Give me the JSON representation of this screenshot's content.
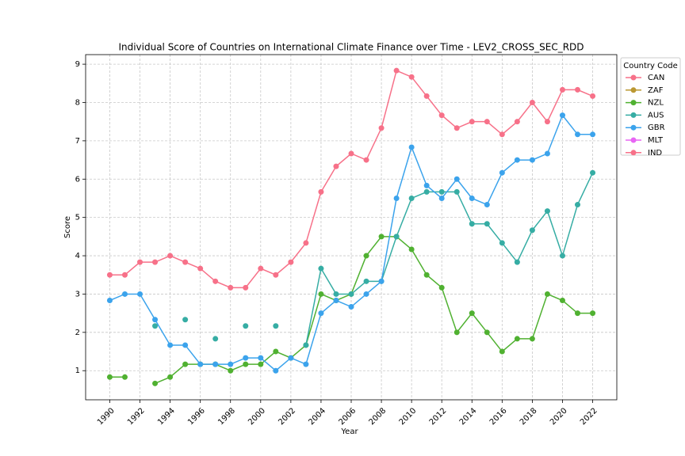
{
  "chart_data": {
    "type": "line",
    "title": "Individual Score of Countries on International Climate Finance over Time - LEV2_CROSS_SEC_RDD",
    "x_label": "Year",
    "y_label": "Score",
    "legend_title": "Country Code",
    "legend": "outside right",
    "grid": true,
    "x": [
      1990,
      1991,
      1992,
      1993,
      1994,
      1995,
      1996,
      1997,
      1998,
      1999,
      2000,
      2001,
      2002,
      2003,
      2004,
      2005,
      2006,
      2007,
      2008,
      2009,
      2010,
      2011,
      2012,
      2013,
      2014,
      2015,
      2016,
      2017,
      2018,
      2019,
      2020,
      2021,
      2022
    ],
    "xlim": [
      1988.4,
      2023.6
    ],
    "xticks": [
      1990,
      1992,
      1994,
      1996,
      1998,
      2000,
      2002,
      2004,
      2006,
      2008,
      2010,
      2012,
      2014,
      2016,
      2018,
      2020,
      2022
    ],
    "ylim": [
      0.24,
      9.25
    ],
    "yticks": [
      1,
      2,
      3,
      4,
      5,
      6,
      7,
      8,
      9
    ],
    "series": [
      {
        "name": "CAN",
        "color": "#f77189",
        "values": [
          3.5,
          3.5,
          3.833,
          3.833,
          4.0,
          3.833,
          3.667,
          3.333,
          3.167,
          3.167,
          3.667,
          3.5,
          3.833,
          4.333,
          5.667,
          6.333,
          6.667,
          6.5,
          7.333,
          8.833,
          8.667,
          8.167,
          7.667,
          7.333,
          7.5,
          7.5,
          7.167,
          7.5,
          8.0,
          7.5,
          8.333,
          8.333,
          8.167
        ]
      },
      {
        "name": "ZAF",
        "color": "#bb9832",
        "values": [
          null,
          null,
          null,
          null,
          null,
          null,
          null,
          null,
          null,
          null,
          null,
          null,
          null,
          null,
          null,
          null,
          null,
          null,
          null,
          null,
          null,
          null,
          null,
          null,
          null,
          null,
          null,
          null,
          null,
          null,
          null,
          null,
          null
        ]
      },
      {
        "name": "NZL",
        "color": "#50b131",
        "values": [
          0.833,
          0.833,
          null,
          0.667,
          0.833,
          1.167,
          1.167,
          1.167,
          1.0,
          1.167,
          1.167,
          1.5,
          1.333,
          1.667,
          3.0,
          2.833,
          3.0,
          4.0,
          4.5,
          4.5,
          4.167,
          3.5,
          3.167,
          2.0,
          2.5,
          2.0,
          1.5,
          1.833,
          1.833,
          3.0,
          2.833,
          2.5,
          2.5
        ]
      },
      {
        "name": "AUS",
        "color": "#36ada4",
        "values": [
          null,
          null,
          null,
          2.167,
          null,
          2.333,
          null,
          1.833,
          null,
          2.167,
          null,
          2.167,
          null,
          1.667,
          3.667,
          3.0,
          3.0,
          3.333,
          3.333,
          4.5,
          5.5,
          5.667,
          5.667,
          5.667,
          4.833,
          4.833,
          4.333,
          3.833,
          4.667,
          5.167,
          4.0,
          5.333,
          6.167
        ]
      },
      {
        "name": "GBR",
        "color": "#3ba3ec",
        "values": [
          2.833,
          3.0,
          3.0,
          2.333,
          1.667,
          1.667,
          1.167,
          1.167,
          1.167,
          1.333,
          1.333,
          1.0,
          1.333,
          1.167,
          2.5,
          2.833,
          2.667,
          3.0,
          3.333,
          5.5,
          6.833,
          5.833,
          5.5,
          6.0,
          5.5,
          5.333,
          6.167,
          6.5,
          6.5,
          6.667,
          7.667,
          7.167,
          7.167
        ]
      },
      {
        "name": "MLT",
        "color": "#e866f4",
        "values": [
          null,
          null,
          null,
          null,
          null,
          null,
          null,
          null,
          null,
          null,
          null,
          null,
          null,
          null,
          null,
          null,
          null,
          null,
          null,
          null,
          null,
          null,
          null,
          null,
          null,
          null,
          null,
          null,
          null,
          null,
          null,
          null,
          null
        ]
      },
      {
        "name": "IND",
        "color": "#f77189",
        "values": [
          null,
          null,
          null,
          null,
          null,
          null,
          null,
          null,
          null,
          null,
          null,
          null,
          null,
          null,
          null,
          null,
          null,
          null,
          null,
          null,
          null,
          null,
          null,
          null,
          null,
          null,
          null,
          null,
          null,
          null,
          null,
          null,
          null
        ]
      }
    ]
  }
}
